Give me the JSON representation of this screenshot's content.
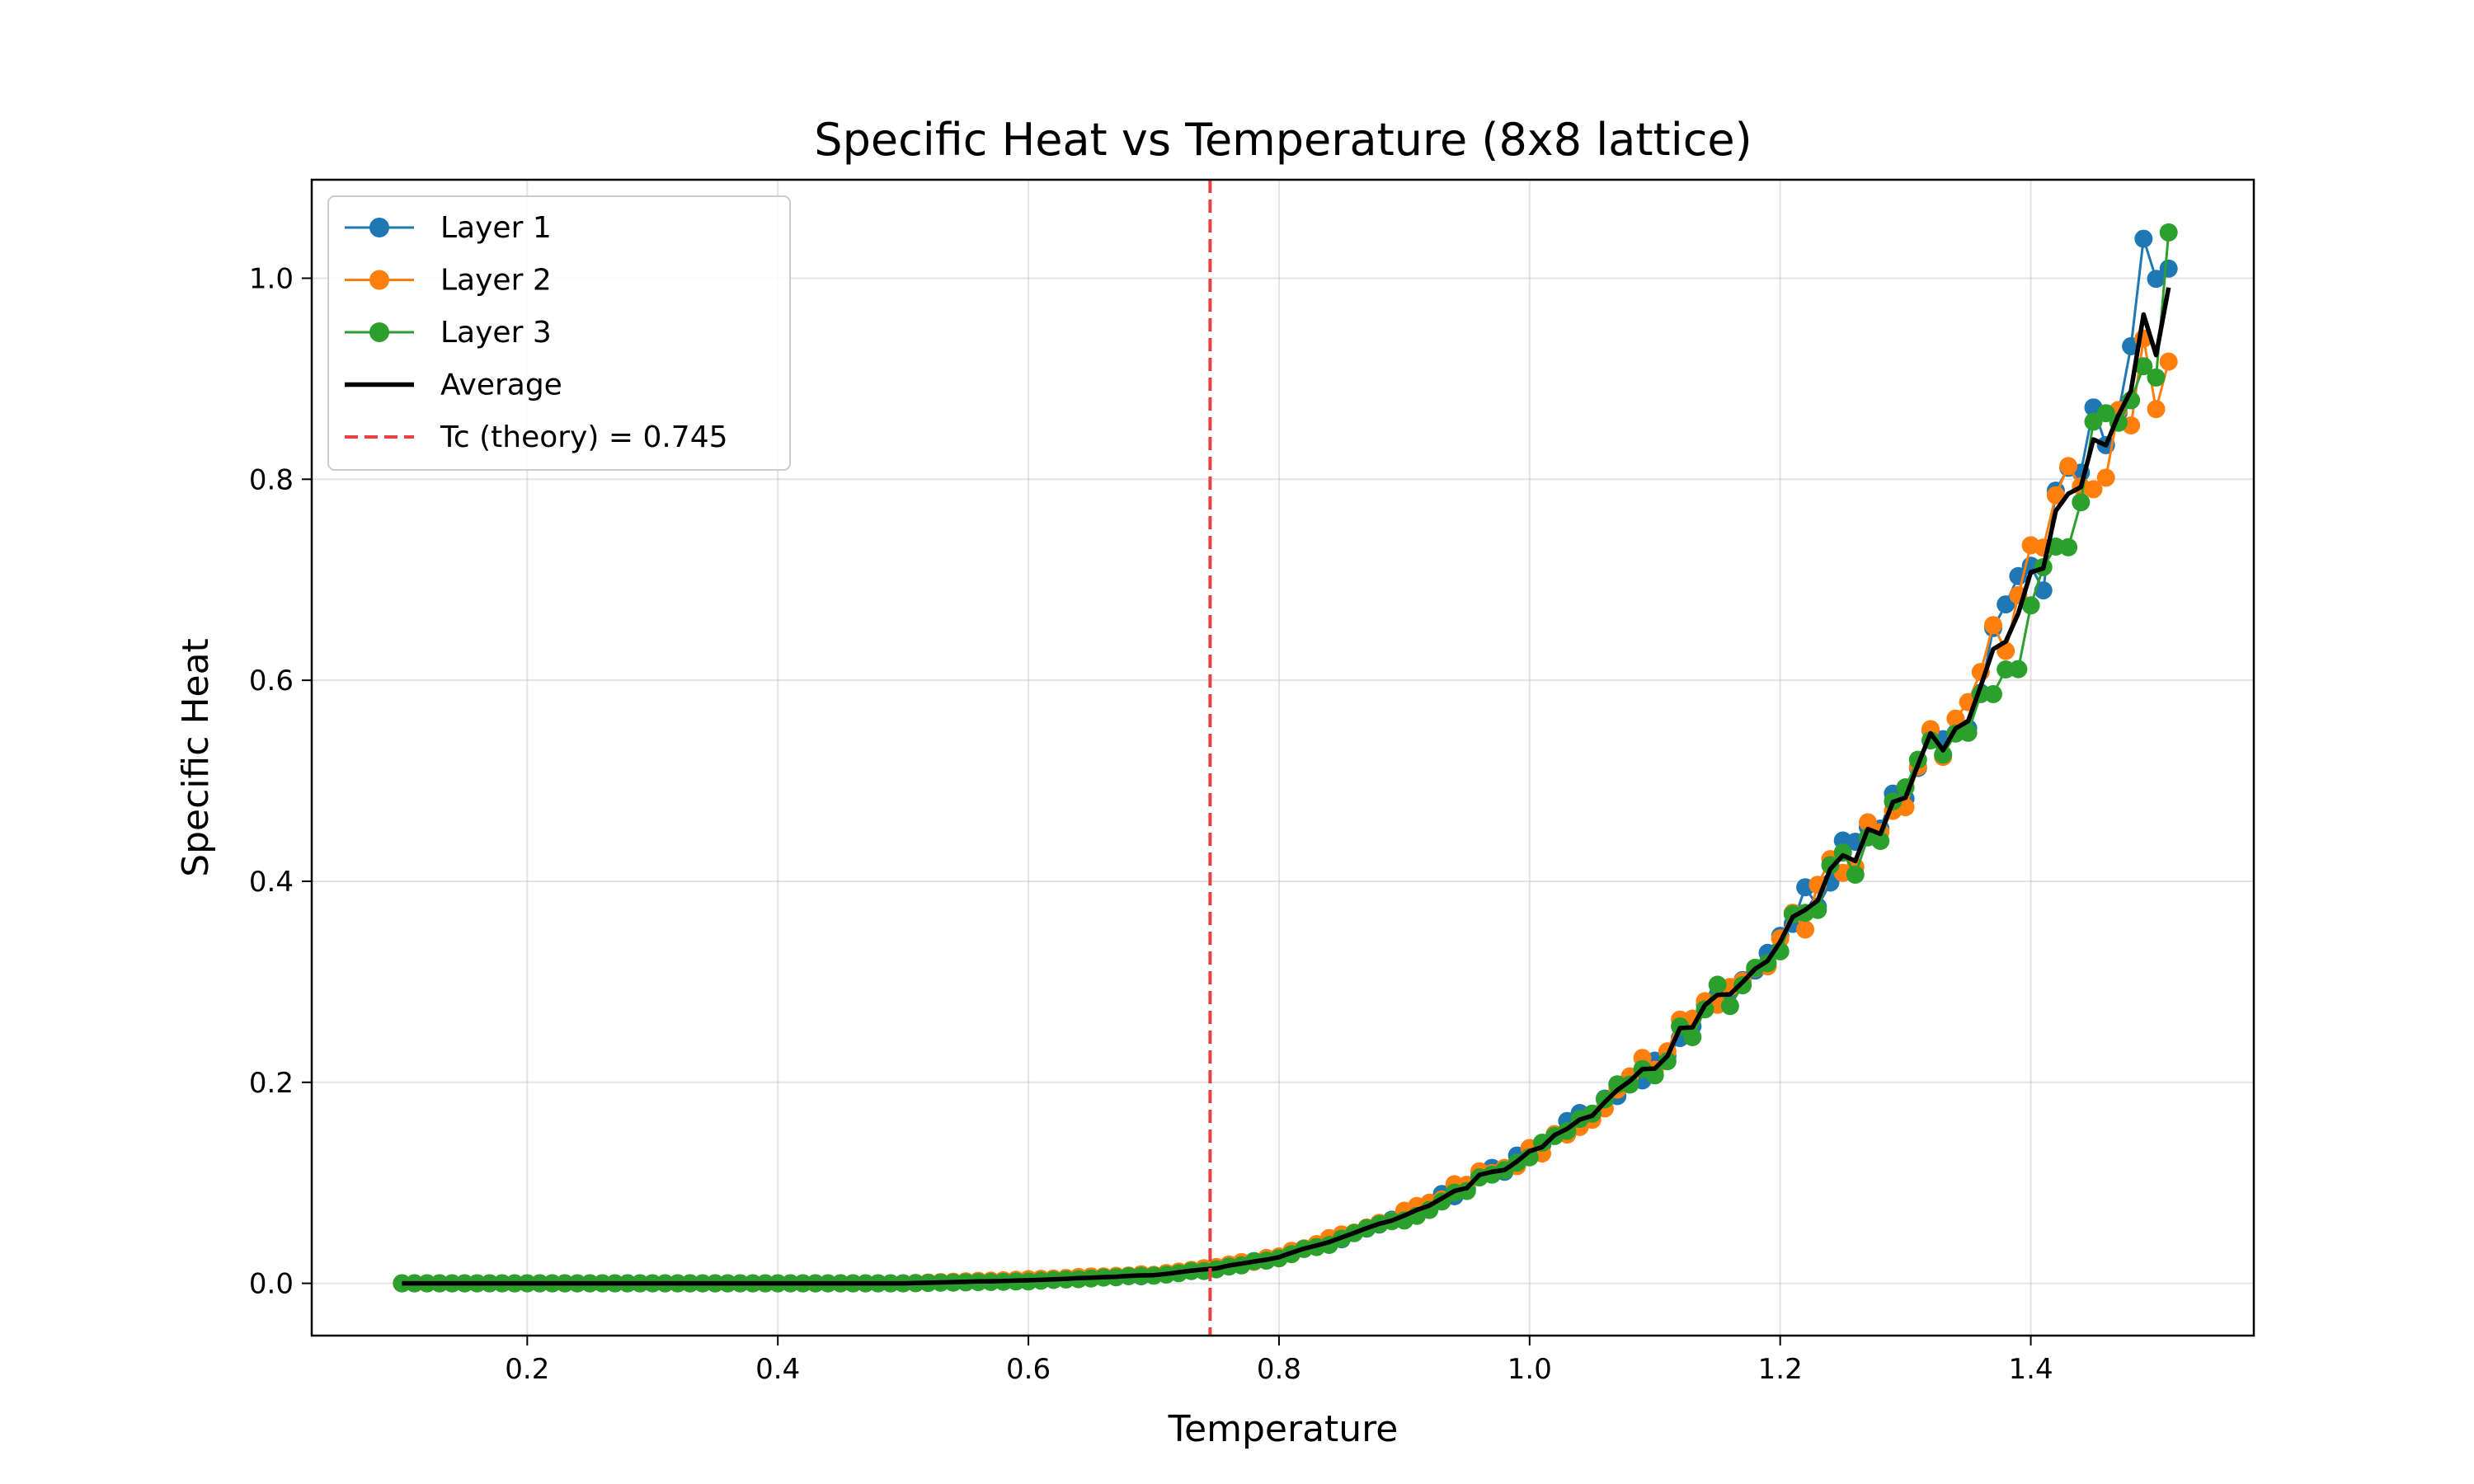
{
  "chart_data": {
    "type": "line",
    "title": "Specific Heat vs Temperature (8x8 lattice)",
    "xlabel": "Temperature",
    "ylabel": "Specific Heat",
    "xlim": [
      0.028,
      1.578
    ],
    "ylim": [
      -0.052,
      1.098
    ],
    "x_ticks": [
      0.2,
      0.4,
      0.6,
      0.8,
      1.0,
      1.2,
      1.4
    ],
    "x_tick_labels": [
      "0.2",
      "0.4",
      "0.6",
      "0.8",
      "1.0",
      "1.2",
      "1.4"
    ],
    "y_ticks": [
      0.0,
      0.2,
      0.4,
      0.6,
      0.8,
      1.0
    ],
    "y_tick_labels": [
      "0.0",
      "0.2",
      "0.4",
      "0.6",
      "0.8",
      "1.0"
    ],
    "grid": true,
    "legend_position": "top-left",
    "x_range": {
      "start": 0.1,
      "end": 1.51,
      "points": 142
    },
    "series": [
      {
        "name": "Layer 1",
        "color": "#1f77b4",
        "style": "line-marker",
        "keypoints": [
          [
            0.1,
            0.0
          ],
          [
            0.5,
            0.0
          ],
          [
            0.6,
            0.003
          ],
          [
            0.7,
            0.008
          ],
          [
            0.75,
            0.015
          ],
          [
            0.8,
            0.025
          ],
          [
            0.85,
            0.045
          ],
          [
            0.9,
            0.068
          ],
          [
            0.95,
            0.095
          ],
          [
            1.0,
            0.13
          ],
          [
            1.05,
            0.172
          ],
          [
            1.1,
            0.225
          ],
          [
            1.15,
            0.285
          ],
          [
            1.2,
            0.34
          ],
          [
            1.25,
            0.42
          ],
          [
            1.3,
            0.49
          ],
          [
            1.35,
            0.575
          ],
          [
            1.4,
            0.69
          ],
          [
            1.45,
            0.83
          ],
          [
            1.5,
            1.03
          ],
          [
            1.51,
            1.045
          ]
        ]
      },
      {
        "name": "Layer 2",
        "color": "#ff7f0e",
        "style": "line-marker",
        "keypoints": [
          [
            0.1,
            0.0
          ],
          [
            0.5,
            0.0
          ],
          [
            0.6,
            0.004
          ],
          [
            0.7,
            0.009
          ],
          [
            0.75,
            0.016
          ],
          [
            0.8,
            0.027
          ],
          [
            0.85,
            0.047
          ],
          [
            0.9,
            0.07
          ],
          [
            0.95,
            0.1
          ],
          [
            1.0,
            0.128
          ],
          [
            1.05,
            0.17
          ],
          [
            1.1,
            0.222
          ],
          [
            1.15,
            0.288
          ],
          [
            1.2,
            0.338
          ],
          [
            1.25,
            0.415
          ],
          [
            1.3,
            0.487
          ],
          [
            1.35,
            0.58
          ],
          [
            1.4,
            0.72
          ],
          [
            1.45,
            0.82
          ],
          [
            1.5,
            0.92
          ],
          [
            1.51,
            0.965
          ]
        ]
      },
      {
        "name": "Layer 3",
        "color": "#2ca02c",
        "style": "line-marker",
        "keypoints": [
          [
            0.1,
            0.0
          ],
          [
            0.5,
            0.0
          ],
          [
            0.6,
            0.002
          ],
          [
            0.7,
            0.008
          ],
          [
            0.75,
            0.014
          ],
          [
            0.8,
            0.026
          ],
          [
            0.85,
            0.044
          ],
          [
            0.9,
            0.066
          ],
          [
            0.95,
            0.093
          ],
          [
            1.0,
            0.127
          ],
          [
            1.05,
            0.168
          ],
          [
            1.1,
            0.22
          ],
          [
            1.15,
            0.282
          ],
          [
            1.2,
            0.335
          ],
          [
            1.25,
            0.408
          ],
          [
            1.3,
            0.49
          ],
          [
            1.35,
            0.57
          ],
          [
            1.4,
            0.64
          ],
          [
            1.45,
            0.84
          ],
          [
            1.5,
            0.95
          ],
          [
            1.51,
            1.02
          ]
        ]
      },
      {
        "name": "Average",
        "color": "#000000",
        "style": "line"
      }
    ],
    "reference_line": {
      "label": "Tc (theory) = 0.745",
      "x": 0.745,
      "color": "#e8413f",
      "style": "dashed"
    }
  }
}
